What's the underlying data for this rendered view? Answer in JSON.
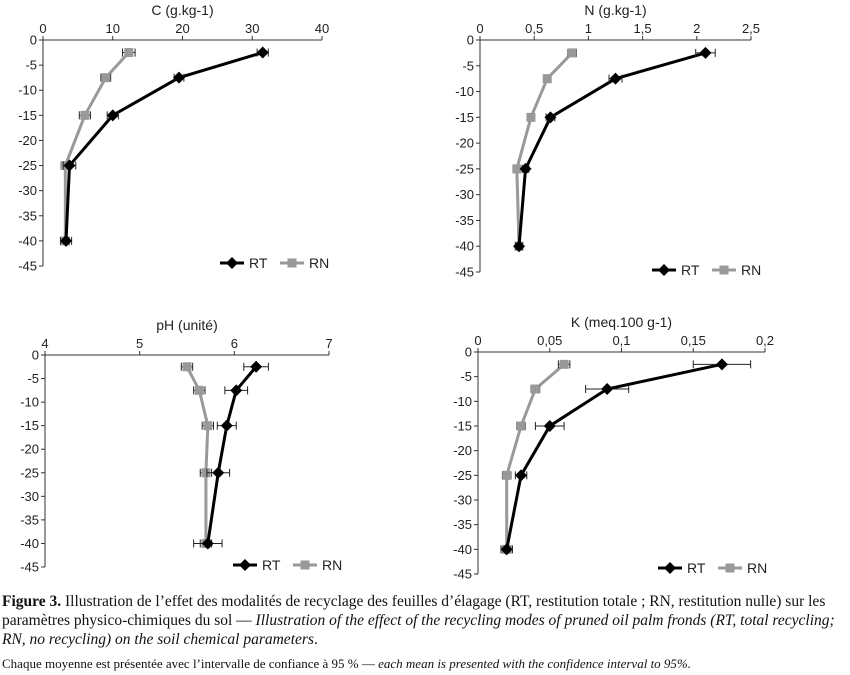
{
  "chart_data": [
    {
      "type": "line",
      "title": "C (g.kg-1)",
      "xlim": [
        0,
        40
      ],
      "x_ticks": [
        "0",
        "10",
        "20",
        "30",
        "40"
      ],
      "ylim": [
        -45,
        0
      ],
      "y_ticks": [
        "0",
        "-5",
        "-10",
        "-15",
        "-20",
        "-25",
        "-30",
        "-35",
        "-40",
        "-45"
      ],
      "depth": [
        -2.5,
        -7.5,
        -15,
        -25,
        -40
      ],
      "legend_position": "bottom-right",
      "series": [
        {
          "name": "RT",
          "color": "#000000",
          "marker": "diamond",
          "values": [
            31.5,
            19.5,
            10,
            3.8,
            3.3
          ],
          "ci": [
            0.8,
            0.7,
            0.8,
            0.9,
            0.8
          ]
        },
        {
          "name": "RN",
          "color": "#999999",
          "marker": "square",
          "values": [
            12.3,
            9,
            6,
            3.2,
            3.2
          ],
          "ci": [
            0.9,
            0.7,
            0.8,
            0.6,
            0.6
          ]
        }
      ]
    },
    {
      "type": "line",
      "title": "N (g.kg-1)",
      "xlim": [
        0,
        2.5
      ],
      "x_ticks": [
        "0",
        "0,5",
        "1",
        "1,5",
        "2",
        "2,5"
      ],
      "ylim": [
        -45,
        0
      ],
      "y_ticks": [
        "0",
        "-5",
        "-10",
        "-15",
        "-20",
        "-25",
        "-30",
        "-35",
        "-40",
        "-45"
      ],
      "depth": [
        -2.5,
        -7.5,
        -15,
        -25,
        -40
      ],
      "legend_position": "bottom-right",
      "series": [
        {
          "name": "RT",
          "color": "#000000",
          "marker": "diamond",
          "values": [
            2.08,
            1.25,
            0.65,
            0.42,
            0.36
          ],
          "ci": [
            0.09,
            0.06,
            0.04,
            0.03,
            0.03
          ]
        },
        {
          "name": "RN",
          "color": "#999999",
          "marker": "square",
          "values": [
            0.85,
            0.62,
            0.47,
            0.34,
            0.36
          ],
          "ci": [
            0.04,
            0.02,
            0.02,
            0.02,
            0.03
          ]
        }
      ]
    },
    {
      "type": "line",
      "title": "pH (unité)",
      "xlim": [
        4,
        7
      ],
      "x_ticks": [
        "4",
        "5",
        "6",
        "7"
      ],
      "ylim": [
        -45,
        0
      ],
      "y_ticks": [
        "0",
        "-5",
        "-10",
        "-15",
        "-20",
        "-25",
        "-30",
        "-35",
        "-40",
        "-45"
      ],
      "depth": [
        -2.5,
        -7.5,
        -15,
        -25,
        -40
      ],
      "legend_position": "bottom-right",
      "series": [
        {
          "name": "RT",
          "color": "#000000",
          "marker": "diamond",
          "values": [
            6.23,
            6.02,
            5.92,
            5.83,
            5.72
          ],
          "ci": [
            0.13,
            0.12,
            0.1,
            0.12,
            0.15
          ]
        },
        {
          "name": "RN",
          "color": "#999999",
          "marker": "square",
          "values": [
            5.5,
            5.63,
            5.72,
            5.7,
            5.7
          ],
          "ci": [
            0.06,
            0.06,
            0.06,
            0.06,
            0.06
          ]
        }
      ]
    },
    {
      "type": "line",
      "title": "K (meq.100 g-1)",
      "xlim": [
        0,
        0.2
      ],
      "x_ticks": [
        "0",
        "0,05",
        "0,1",
        "0,15",
        "0,2"
      ],
      "ylim": [
        -45,
        0
      ],
      "y_ticks": [
        "0",
        "-5",
        "-10",
        "-15",
        "-20",
        "-25",
        "-30",
        "-35",
        "-40",
        "-45"
      ],
      "depth": [
        -2.5,
        -7.5,
        -15,
        -25,
        -40
      ],
      "legend_position": "bottom-right",
      "series": [
        {
          "name": "RT",
          "color": "#000000",
          "marker": "diamond",
          "values": [
            0.17,
            0.09,
            0.05,
            0.03,
            0.02
          ],
          "ci": [
            0.02,
            0.015,
            0.01,
            0.004,
            0.004
          ]
        },
        {
          "name": "RN",
          "color": "#999999",
          "marker": "square",
          "values": [
            0.06,
            0.04,
            0.03,
            0.02,
            0.02
          ],
          "ci": [
            0.004,
            0.003,
            0.003,
            0.003,
            0.003
          ]
        }
      ]
    }
  ],
  "caption": {
    "label": "Figure 3.",
    "text_fr": " Illustration de l’effet des modalités de recyclage des feuilles d’élagage (RT, restitution totale ; RN, restitution nulle) sur les paramètres physico-chimiques du sol — ",
    "text_en": "Illustration of the effect of the recycling modes of pruned oil palm fronds (RT, total recycling; RN, no recycling) on the soil chemical parameters",
    "end": ".",
    "note_fr": "Chaque moyenne est présentée avec l’intervalle de confiance à 95 % — ",
    "note_en": "each mean is presented with the confidence interval to 95%."
  }
}
